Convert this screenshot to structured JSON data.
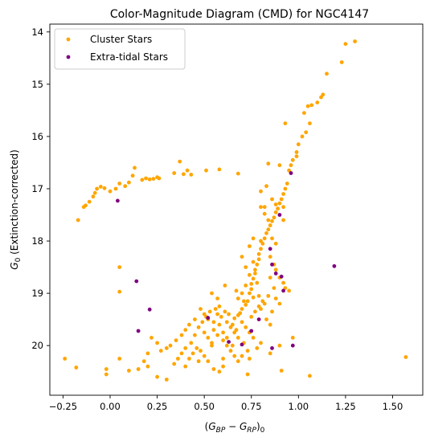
{
  "chart_data": {
    "type": "scatter",
    "title": "Color-Magnitude Diagram (CMD) for NGC4147",
    "xlabel_parts": {
      "open": "(",
      "g": "G",
      "bp": "BP",
      "minus": " − ",
      "rp": "RP",
      "close": ")",
      "sub0": "0"
    },
    "ylabel_parts": {
      "g": "G",
      "sub0": "0",
      "rest": " (Extinction-corrected)"
    },
    "xlim": [
      -0.32,
      1.66
    ],
    "ylim": [
      20.95,
      13.85
    ],
    "y_inverted": true,
    "xticks": [
      -0.25,
      0,
      0.25,
      0.5,
      0.75,
      1.0,
      1.25,
      1.5
    ],
    "xtick_labels": [
      "−0.25",
      "0.00",
      "0.25",
      "0.50",
      "0.75",
      "1.00",
      "1.25",
      "1.50"
    ],
    "yticks": [
      14,
      15,
      16,
      17,
      18,
      19,
      20
    ],
    "ytick_labels": [
      "14",
      "15",
      "16",
      "17",
      "18",
      "19",
      "20"
    ],
    "grid": false,
    "legend_position": "top-left",
    "series": [
      {
        "name": "Cluster Stars",
        "color": "#ffa500",
        "points": [
          [
            1.3,
            14.18
          ],
          [
            1.25,
            14.23
          ],
          [
            1.23,
            14.58
          ],
          [
            1.15,
            14.8
          ],
          [
            1.13,
            15.2
          ],
          [
            1.12,
            15.25
          ],
          [
            1.1,
            15.35
          ],
          [
            1.07,
            15.4
          ],
          [
            1.05,
            15.42
          ],
          [
            1.03,
            15.55
          ],
          [
            1.06,
            15.75
          ],
          [
            1.04,
            15.92
          ],
          [
            1.02,
            16.0
          ],
          [
            1.0,
            16.15
          ],
          [
            0.99,
            16.3
          ],
          [
            0.99,
            16.38
          ],
          [
            0.97,
            16.45
          ],
          [
            0.96,
            16.55
          ],
          [
            0.95,
            16.65
          ],
          [
            0.93,
            15.75
          ],
          [
            0.9,
            16.55
          ],
          [
            0.84,
            16.52
          ],
          [
            0.94,
            16.9
          ],
          [
            0.93,
            17.0
          ],
          [
            0.92,
            17.1
          ],
          [
            0.91,
            17.2
          ],
          [
            0.9,
            17.28
          ],
          [
            0.92,
            17.35
          ],
          [
            0.89,
            17.38
          ],
          [
            0.88,
            17.45
          ],
          [
            0.87,
            17.55
          ],
          [
            0.86,
            17.62
          ],
          [
            0.85,
            17.7
          ],
          [
            0.84,
            17.78
          ],
          [
            0.83,
            17.85
          ],
          [
            0.82,
            17.95
          ],
          [
            0.81,
            18.05
          ],
          [
            0.8,
            18.15
          ],
          [
            0.79,
            18.25
          ],
          [
            0.79,
            18.35
          ],
          [
            0.78,
            18.45
          ],
          [
            0.77,
            18.55
          ],
          [
            0.77,
            18.62
          ],
          [
            0.76,
            18.72
          ],
          [
            0.75,
            18.82
          ],
          [
            0.75,
            18.92
          ],
          [
            0.74,
            19.0
          ],
          [
            0.76,
            19.08
          ],
          [
            0.73,
            19.15
          ],
          [
            0.72,
            19.22
          ],
          [
            0.7,
            19.3
          ],
          [
            0.69,
            19.38
          ],
          [
            0.68,
            19.42
          ],
          [
            0.66,
            19.48
          ],
          [
            0.85,
            18.3
          ],
          [
            0.87,
            18.45
          ],
          [
            0.88,
            18.55
          ],
          [
            0.9,
            18.7
          ],
          [
            0.92,
            18.8
          ],
          [
            0.93,
            18.9
          ],
          [
            0.85,
            18.7
          ],
          [
            0.87,
            18.9
          ],
          [
            0.84,
            19.05
          ],
          [
            0.82,
            19.2
          ],
          [
            0.8,
            19.3
          ],
          [
            0.82,
            17.35
          ],
          [
            0.84,
            17.6
          ],
          [
            0.86,
            17.95
          ],
          [
            0.88,
            18.05
          ],
          [
            0.8,
            18.0
          ],
          [
            0.76,
            18.4
          ],
          [
            0.74,
            18.65
          ],
          [
            0.72,
            18.85
          ],
          [
            0.7,
            19.0
          ],
          [
            0.67,
            18.95
          ],
          [
            0.9,
            19.2
          ],
          [
            0.97,
            19.85
          ],
          [
            0.9,
            20.0
          ],
          [
            0.85,
            20.15
          ],
          [
            0.8,
            19.95
          ],
          [
            0.78,
            20.05
          ],
          [
            0.74,
            20.25
          ],
          [
            0.7,
            20.2
          ],
          [
            0.65,
            20.0
          ],
          [
            0.62,
            19.85
          ],
          [
            0.6,
            19.75
          ],
          [
            0.58,
            19.6
          ],
          [
            0.55,
            19.55
          ],
          [
            0.52,
            19.5
          ],
          [
            0.5,
            19.4
          ],
          [
            0.48,
            19.3
          ],
          [
            0.45,
            19.5
          ],
          [
            0.42,
            19.6
          ],
          [
            0.4,
            19.7
          ],
          [
            0.38,
            19.8
          ],
          [
            0.35,
            19.9
          ],
          [
            0.32,
            20.0
          ],
          [
            0.3,
            20.05
          ],
          [
            0.27,
            20.1
          ],
          [
            0.25,
            19.95
          ],
          [
            0.22,
            19.85
          ],
          [
            0.2,
            20.15
          ],
          [
            0.18,
            20.3
          ],
          [
            0.15,
            20.45
          ],
          [
            0.1,
            20.48
          ],
          [
            0.55,
            19.7
          ],
          [
            0.57,
            19.8
          ],
          [
            0.6,
            19.9
          ],
          [
            0.62,
            20.0
          ],
          [
            0.64,
            20.1
          ],
          [
            0.66,
            20.2
          ],
          [
            0.68,
            20.3
          ],
          [
            0.5,
            19.75
          ],
          [
            0.52,
            19.85
          ],
          [
            0.54,
            19.95
          ],
          [
            0.47,
            19.65
          ],
          [
            0.45,
            19.8
          ],
          [
            0.43,
            19.95
          ],
          [
            0.4,
            20.05
          ],
          [
            0.38,
            20.15
          ],
          [
            0.36,
            20.25
          ],
          [
            0.34,
            20.35
          ],
          [
            0.6,
            20.4
          ],
          [
            0.58,
            20.5
          ],
          [
            0.55,
            20.45
          ],
          [
            0.52,
            20.3
          ],
          [
            0.5,
            20.2
          ],
          [
            0.48,
            20.1
          ],
          [
            0.46,
            20.05
          ],
          [
            0.44,
            20.15
          ],
          [
            0.42,
            20.25
          ],
          [
            0.65,
            19.6
          ],
          [
            0.67,
            19.7
          ],
          [
            0.7,
            19.55
          ],
          [
            0.72,
            19.65
          ],
          [
            0.74,
            19.75
          ],
          [
            0.76,
            19.85
          ],
          [
            0.63,
            19.4
          ],
          [
            0.61,
            19.35
          ],
          [
            0.59,
            19.45
          ],
          [
            0.57,
            19.4
          ],
          [
            0.53,
            19.35
          ],
          [
            0.51,
            19.45
          ],
          [
            0.49,
            19.55
          ],
          [
            0.56,
            19.3
          ],
          [
            0.58,
            19.25
          ],
          [
            0.62,
            19.55
          ],
          [
            0.64,
            19.65
          ],
          [
            0.66,
            19.75
          ],
          [
            0.68,
            19.85
          ],
          [
            0.71,
            19.95
          ],
          [
            0.73,
            20.1
          ],
          [
            0.75,
            19.45
          ],
          [
            0.77,
            19.35
          ],
          [
            0.79,
            19.25
          ],
          [
            0.81,
            19.15
          ],
          [
            0.83,
            19.5
          ],
          [
            0.85,
            19.6
          ],
          [
            0.72,
            18.5
          ],
          [
            0.7,
            18.3
          ],
          [
            0.74,
            18.1
          ],
          [
            0.76,
            17.95
          ],
          [
            0.86,
            19.35
          ],
          [
            1.06,
            20.58
          ],
          [
            0.91,
            20.48
          ],
          [
            0.73,
            20.55
          ],
          [
            0.6,
            20.25
          ],
          [
            0.3,
            20.65
          ],
          [
            0.2,
            20.4
          ],
          [
            0.25,
            20.6
          ],
          [
            0.05,
            20.25
          ],
          [
            -0.02,
            20.45
          ],
          [
            -0.02,
            20.55
          ],
          [
            -0.18,
            20.42
          ],
          [
            -0.24,
            20.25
          ],
          [
            1.57,
            20.22
          ],
          [
            0.05,
            18.5
          ],
          [
            0.05,
            18.97
          ],
          [
            -0.17,
            17.6
          ],
          [
            -0.14,
            17.35
          ],
          [
            -0.13,
            17.32
          ],
          [
            -0.11,
            17.25
          ],
          [
            -0.09,
            17.15
          ],
          [
            -0.08,
            17.08
          ],
          [
            -0.07,
            17.0
          ],
          [
            -0.05,
            16.96
          ],
          [
            -0.03,
            16.99
          ],
          [
            0.0,
            17.05
          ],
          [
            0.03,
            17.0
          ],
          [
            0.05,
            16.9
          ],
          [
            0.08,
            16.95
          ],
          [
            0.1,
            16.88
          ],
          [
            0.12,
            16.75
          ],
          [
            0.13,
            16.6
          ],
          [
            0.17,
            16.83
          ],
          [
            0.19,
            16.8
          ],
          [
            0.21,
            16.82
          ],
          [
            0.23,
            16.81
          ],
          [
            0.25,
            16.78
          ],
          [
            0.26,
            16.8
          ],
          [
            0.34,
            16.7
          ],
          [
            0.37,
            16.48
          ],
          [
            0.39,
            16.72
          ],
          [
            0.41,
            16.65
          ],
          [
            0.43,
            16.73
          ],
          [
            0.51,
            16.65
          ],
          [
            0.58,
            16.63
          ],
          [
            0.68,
            16.71
          ],
          [
            0.8,
            17.05
          ],
          [
            0.8,
            17.35
          ],
          [
            0.83,
            16.95
          ],
          [
            0.82,
            17.48
          ],
          [
            0.86,
            17.2
          ],
          [
            0.88,
            17.3
          ],
          [
            0.92,
            17.6
          ],
          [
            0.78,
            18.8
          ],
          [
            0.79,
            19.05
          ],
          [
            0.88,
            19.1
          ],
          [
            0.95,
            18.95
          ],
          [
            0.54,
            19.0
          ],
          [
            0.57,
            19.1
          ],
          [
            0.61,
            18.85
          ],
          [
            0.68,
            19.1
          ],
          [
            0.71,
            19.15
          ],
          [
            0.54,
            20.0
          ],
          [
            0.47,
            20.3
          ],
          [
            0.4,
            20.4
          ]
        ]
      },
      {
        "name": "Extra-tidal Stars",
        "color": "#800080",
        "points": [
          [
            0.96,
            16.7
          ],
          [
            0.9,
            17.5
          ],
          [
            0.85,
            18.15
          ],
          [
            0.86,
            18.45
          ],
          [
            0.88,
            18.62
          ],
          [
            0.91,
            18.68
          ],
          [
            0.92,
            18.95
          ],
          [
            1.19,
            18.48
          ],
          [
            0.14,
            18.77
          ],
          [
            0.21,
            19.31
          ],
          [
            0.15,
            19.72
          ],
          [
            0.04,
            17.23
          ],
          [
            0.52,
            19.47
          ],
          [
            0.63,
            19.93
          ],
          [
            0.7,
            19.98
          ],
          [
            0.75,
            19.72
          ],
          [
            0.79,
            19.5
          ],
          [
            0.97,
            20.0
          ],
          [
            0.86,
            20.05
          ]
        ]
      }
    ]
  }
}
